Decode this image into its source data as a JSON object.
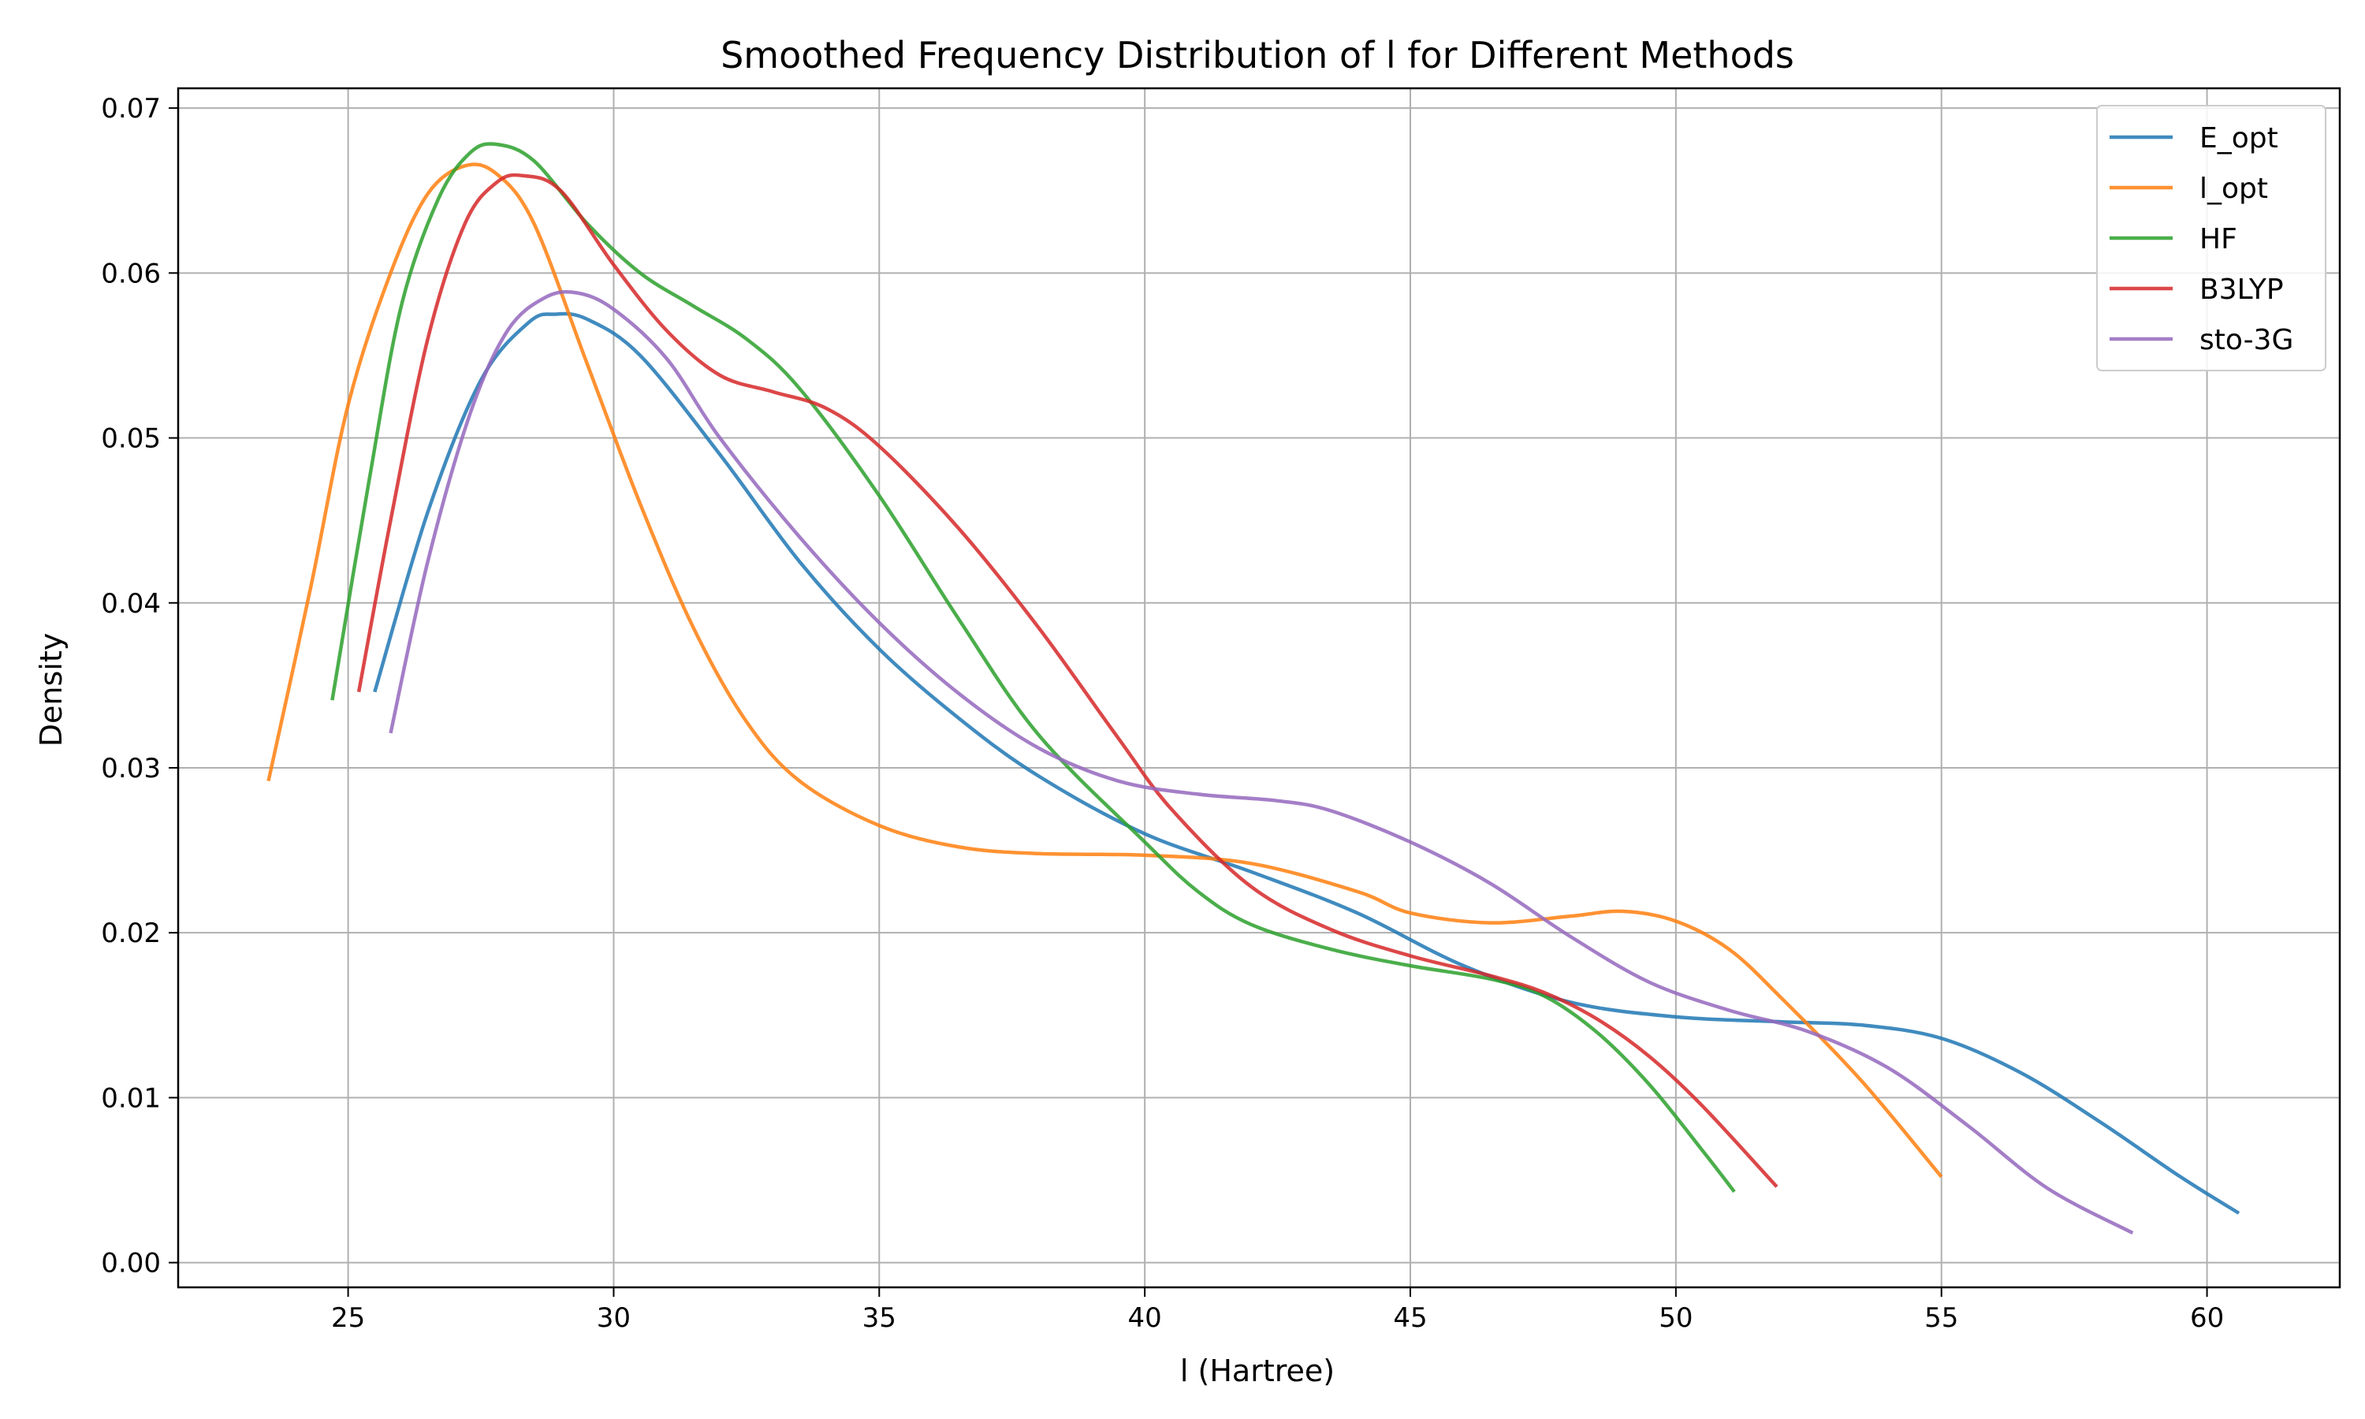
{
  "chart_data": {
    "type": "line",
    "title": "Smoothed Frequency Distribution of l for Different Methods",
    "xlabel": "l (Hartree)",
    "ylabel": "Density",
    "xlim": [
      21.8,
      62.5
    ],
    "ylim": [
      -0.0015,
      0.0712
    ],
    "xticks": [
      25,
      30,
      35,
      40,
      45,
      50,
      55,
      60
    ],
    "yticks": [
      0.0,
      0.01,
      0.02,
      0.03,
      0.04,
      0.05,
      0.06,
      0.07
    ],
    "xtick_labels": [
      "25",
      "30",
      "35",
      "40",
      "45",
      "50",
      "55",
      "60"
    ],
    "ytick_labels": [
      "0.00",
      "0.01",
      "0.02",
      "0.03",
      "0.04",
      "0.05",
      "0.06",
      "0.07"
    ],
    "grid": true,
    "legend_position": "top-right",
    "series": [
      {
        "name": "E_opt",
        "color": "#1f77b4",
        "points": [
          [
            25.5,
            0.0346
          ],
          [
            26.5,
            0.0455
          ],
          [
            27.5,
            0.0535
          ],
          [
            28.4,
            0.057
          ],
          [
            28.9,
            0.0575
          ],
          [
            29.5,
            0.0572
          ],
          [
            30.5,
            0.055
          ],
          [
            32,
            0.049
          ],
          [
            33.5,
            0.0425
          ],
          [
            35,
            0.0372
          ],
          [
            36.5,
            0.033
          ],
          [
            38,
            0.0295
          ],
          [
            40,
            0.026
          ],
          [
            42,
            0.0237
          ],
          [
            44,
            0.0212
          ],
          [
            46,
            0.018
          ],
          [
            48,
            0.0158
          ],
          [
            50,
            0.0149
          ],
          [
            52,
            0.0146
          ],
          [
            53.5,
            0.0144
          ],
          [
            55,
            0.0136
          ],
          [
            56.5,
            0.0115
          ],
          [
            58,
            0.0085
          ],
          [
            59.5,
            0.0052
          ],
          [
            60.6,
            0.003
          ]
        ]
      },
      {
        "name": "l_opt",
        "color": "#ff7f0e",
        "points": [
          [
            23.5,
            0.0292
          ],
          [
            24.3,
            0.041
          ],
          [
            25,
            0.052
          ],
          [
            25.8,
            0.06
          ],
          [
            26.5,
            0.0648
          ],
          [
            27.2,
            0.0665
          ],
          [
            27.8,
            0.066
          ],
          [
            28.5,
            0.063
          ],
          [
            29.5,
            0.0545
          ],
          [
            30.5,
            0.046
          ],
          [
            31.5,
            0.0385
          ],
          [
            32.5,
            0.0328
          ],
          [
            33.5,
            0.0292
          ],
          [
            35,
            0.0265
          ],
          [
            36.5,
            0.0252
          ],
          [
            38,
            0.0248
          ],
          [
            40,
            0.0247
          ],
          [
            42,
            0.0242
          ],
          [
            44,
            0.0225
          ],
          [
            45,
            0.0212
          ],
          [
            46.5,
            0.0206
          ],
          [
            48,
            0.021
          ],
          [
            49,
            0.0213
          ],
          [
            50,
            0.0207
          ],
          [
            51,
            0.019
          ],
          [
            52,
            0.016
          ],
          [
            53.5,
            0.011
          ],
          [
            55,
            0.0052
          ]
        ]
      },
      {
        "name": "HF",
        "color": "#2ca02c",
        "points": [
          [
            24.7,
            0.0341
          ],
          [
            25.4,
            0.0475
          ],
          [
            26,
            0.058
          ],
          [
            26.7,
            0.0645
          ],
          [
            27.3,
            0.0673
          ],
          [
            27.8,
            0.0678
          ],
          [
            28.5,
            0.0668
          ],
          [
            29.5,
            0.063
          ],
          [
            30.5,
            0.06
          ],
          [
            31.5,
            0.058
          ],
          [
            32.5,
            0.056
          ],
          [
            33.5,
            0.053
          ],
          [
            35,
            0.0465
          ],
          [
            36.5,
            0.039
          ],
          [
            38,
            0.032
          ],
          [
            40,
            0.0255
          ],
          [
            41,
            0.0225
          ],
          [
            42,
            0.0205
          ],
          [
            43.5,
            0.019
          ],
          [
            45,
            0.018
          ],
          [
            46.5,
            0.0172
          ],
          [
            47.5,
            0.0162
          ],
          [
            48.5,
            0.014
          ],
          [
            49.5,
            0.0108
          ],
          [
            50.5,
            0.0068
          ],
          [
            51.1,
            0.0043
          ]
        ]
      },
      {
        "name": "B3LYP",
        "color": "#d62728",
        "points": [
          [
            25.2,
            0.0346
          ],
          [
            25.8,
            0.045
          ],
          [
            26.5,
            0.056
          ],
          [
            27.2,
            0.063
          ],
          [
            27.8,
            0.0655
          ],
          [
            28.3,
            0.0659
          ],
          [
            29,
            0.065
          ],
          [
            30,
            0.0605
          ],
          [
            31,
            0.0565
          ],
          [
            32,
            0.0538
          ],
          [
            33,
            0.0528
          ],
          [
            34,
            0.0518
          ],
          [
            35,
            0.0495
          ],
          [
            36.5,
            0.0445
          ],
          [
            38,
            0.0385
          ],
          [
            39.5,
            0.0318
          ],
          [
            40.5,
            0.0275
          ],
          [
            42,
            0.0228
          ],
          [
            43.5,
            0.0202
          ],
          [
            45,
            0.0186
          ],
          [
            46.5,
            0.0174
          ],
          [
            47.5,
            0.0164
          ],
          [
            48.5,
            0.0148
          ],
          [
            49.5,
            0.0125
          ],
          [
            50.5,
            0.0095
          ],
          [
            51.9,
            0.0046
          ]
        ]
      },
      {
        "name": "sto-3G",
        "color": "#9467bd",
        "points": [
          [
            25.8,
            0.0321
          ],
          [
            26.5,
            0.0425
          ],
          [
            27.3,
            0.0515
          ],
          [
            28,
            0.0565
          ],
          [
            28.7,
            0.0585
          ],
          [
            29.3,
            0.0588
          ],
          [
            30,
            0.0578
          ],
          [
            31,
            0.0548
          ],
          [
            32,
            0.05
          ],
          [
            33.5,
            0.044
          ],
          [
            35,
            0.0388
          ],
          [
            36.5,
            0.0345
          ],
          [
            38,
            0.0312
          ],
          [
            39.5,
            0.0292
          ],
          [
            41,
            0.0284
          ],
          [
            42.5,
            0.028
          ],
          [
            43.5,
            0.0274
          ],
          [
            45,
            0.0255
          ],
          [
            46.5,
            0.023
          ],
          [
            48,
            0.0198
          ],
          [
            49.5,
            0.017
          ],
          [
            51,
            0.0153
          ],
          [
            52.5,
            0.014
          ],
          [
            54,
            0.0118
          ],
          [
            55.5,
            0.0083
          ],
          [
            57,
            0.0045
          ],
          [
            58.6,
            0.0018
          ]
        ]
      }
    ]
  }
}
